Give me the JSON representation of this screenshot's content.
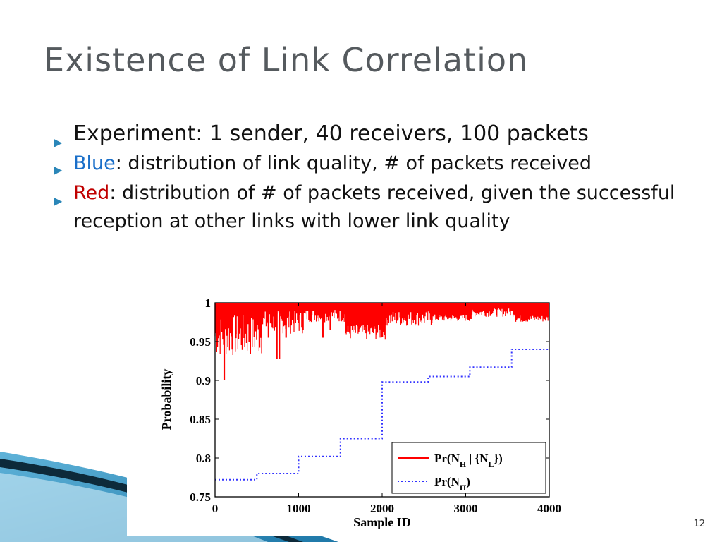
{
  "slide": {
    "title": "Existence of Link Correlation",
    "bullets": [
      {
        "text": "Experiment: 1 sender, 40 receivers, 100 packets"
      },
      {
        "highlight": "Blue",
        "text": ": distribution of link quality, # of packets received"
      },
      {
        "highlight": "Red",
        "text": ": distribution of # of packets received, given the successful reception at other links with lower link quality"
      }
    ],
    "page_number": "12",
    "colors": {
      "accent": "#2a86b8",
      "blue": "#1a6fc9",
      "red": "#c00000",
      "title": "#555a5e"
    }
  },
  "chart_data": {
    "type": "line",
    "xlabel": "Sample ID",
    "ylabel": "Probability",
    "xlim": [
      0,
      4000
    ],
    "ylim": [
      0.75,
      1.0
    ],
    "x_ticks": [
      "0",
      "1000",
      "2000",
      "3000",
      "4000"
    ],
    "y_ticks": [
      "0.75",
      "0.8",
      "0.85",
      "0.9",
      "0.95",
      "1"
    ],
    "grid": false,
    "legend_position": "bottom-right",
    "series": [
      {
        "name": "Pr(NH | {NL})",
        "style": "solid",
        "color": "#ff0000",
        "steps": [
          {
            "x_start": 0,
            "x_end": 560,
            "level": 0.985,
            "min": 0.93,
            "spikes": [
              [
                110,
                0.9
              ],
              [
                250,
                0.96
              ],
              [
                640,
                0.955
              ],
              [
                770,
                0.928
              ]
            ]
          },
          {
            "x_start": 560,
            "x_end": 1060,
            "level": 0.99,
            "min": 0.96,
            "spikes": [
              [
                740,
                0.928
              ],
              [
                850,
                0.955
              ]
            ]
          },
          {
            "x_start": 1060,
            "x_end": 1560,
            "level": 0.992,
            "min": 0.975,
            "spikes": [
              [
                1290,
                0.955
              ],
              [
                1380,
                0.965
              ]
            ]
          },
          {
            "x_start": 1560,
            "x_end": 2050,
            "level": 0.972,
            "min": 0.952,
            "spikes": []
          },
          {
            "x_start": 2050,
            "x_end": 2600,
            "level": 0.99,
            "min": 0.97,
            "spikes": []
          },
          {
            "x_start": 2600,
            "x_end": 3080,
            "level": 0.985,
            "min": 0.976,
            "spikes": []
          },
          {
            "x_start": 3080,
            "x_end": 3600,
            "level": 0.993,
            "min": 0.982,
            "spikes": []
          },
          {
            "x_start": 3600,
            "x_end": 4000,
            "level": 0.984,
            "min": 0.975,
            "spikes": []
          }
        ]
      },
      {
        "name": "Pr(NH)",
        "style": "dotted",
        "color": "#3333ff",
        "x": [
          0,
          500,
          500,
          1000,
          1000,
          1500,
          1500,
          2000,
          2000,
          2550,
          2550,
          3050,
          3050,
          3550,
          3550,
          4000
        ],
        "y": [
          0.772,
          0.772,
          0.78,
          0.78,
          0.802,
          0.802,
          0.825,
          0.825,
          0.898,
          0.898,
          0.905,
          0.905,
          0.917,
          0.917,
          0.94,
          0.94
        ]
      }
    ]
  }
}
